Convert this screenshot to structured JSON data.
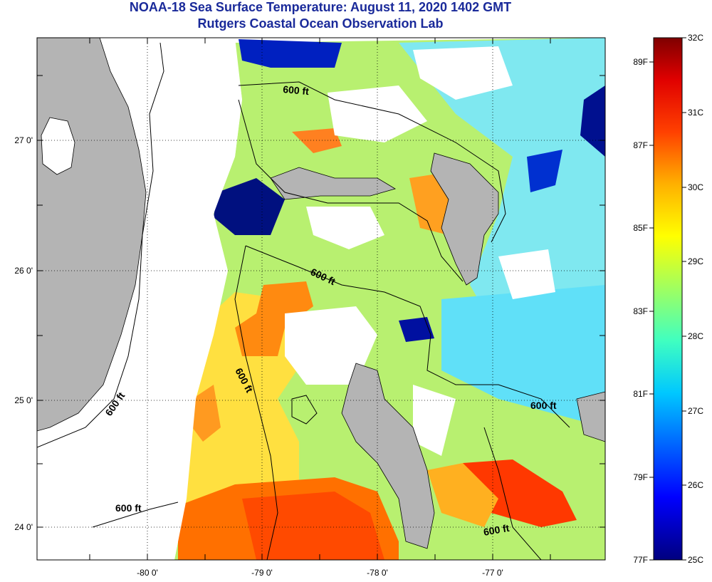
{
  "title": "NOAA-18 Sea Surface Temperature:  August 11, 2020 1402 GMT",
  "subtitle": "Rutgers Coastal Ocean Observation Lab",
  "map": {
    "x_ticks": [
      "-80 0'",
      "-79 0'",
      "-78 0'",
      "-77 0'"
    ],
    "y_ticks": [
      "27 0'",
      "26 0'",
      "25 0'",
      "24 0'"
    ],
    "contour_labels": [
      "600 ft",
      "600 ft",
      "600 ft",
      "600 ft",
      "600 ft",
      "600 ft"
    ]
  },
  "colorbar": {
    "fahrenheit": [
      "89F",
      "87F",
      "85F",
      "83F",
      "81F",
      "79F",
      "77F"
    ],
    "celsius": [
      "32C",
      "31C",
      "30C",
      "29C",
      "28C",
      "27C",
      "26C",
      "25C"
    ],
    "colors": [
      "#00007f",
      "#0000ff",
      "#0080ff",
      "#00ffff",
      "#80ff80",
      "#ffff00",
      "#ff8000",
      "#ff0000",
      "#7f0000"
    ]
  }
}
